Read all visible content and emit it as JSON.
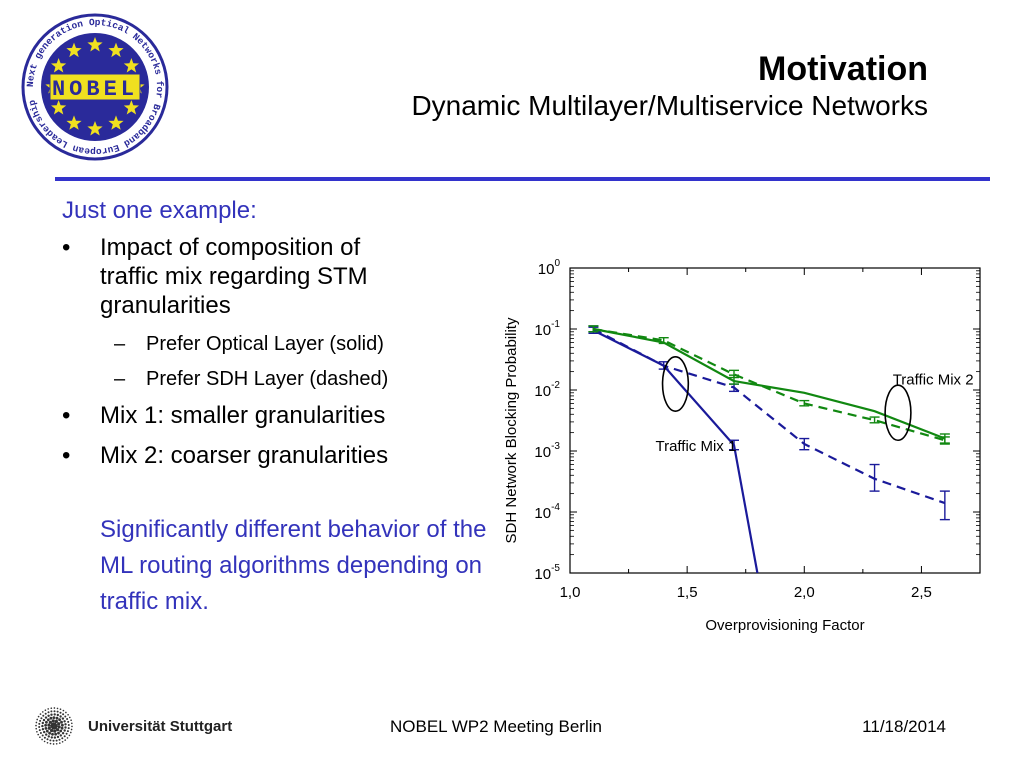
{
  "logo": {
    "text": "NOBEL",
    "ring_text": "Next generation Optical Networks for Broadband European Leadership",
    "colors": {
      "navy": "#2a2a9a",
      "gold": "#f0e020"
    }
  },
  "title": {
    "main": "Motivation",
    "sub": "Dynamic Multilayer/Multiservice Networks"
  },
  "content": {
    "lead": "Just one example:",
    "bullets": [
      {
        "text": "Impact of composition of traffic mix regarding STM granularities",
        "subs": [
          "Prefer Optical Layer (solid)",
          "Prefer SDH Layer (dashed)"
        ]
      },
      {
        "text": "Mix 1: smaller granularities"
      },
      {
        "text": "Mix 2: coarser granularities"
      }
    ],
    "bullet_mark": "•",
    "sub_mark": "–",
    "note": "Significantly different behavior of the ML routing algorithms depending on traffic mix."
  },
  "chart_data": {
    "type": "line",
    "xlabel": "Overprovisioning Factor",
    "ylabel": "SDH Network Blocking Probability",
    "xlim": [
      1.0,
      2.75
    ],
    "ylim": [
      1e-05,
      1
    ],
    "yscale": "log",
    "xticks": [
      "1,0",
      "1,5",
      "2,0",
      "2,5"
    ],
    "xtick_values": [
      1.0,
      1.5,
      2.0,
      2.5
    ],
    "ytick_values": [
      1e-05,
      0.0001,
      0.001,
      0.01,
      0.1,
      1
    ],
    "ytick_base": "10",
    "ytick_exponents": [
      "-5",
      "-4",
      "-3",
      "-2",
      "-1",
      "0"
    ],
    "grid": false,
    "series": [
      {
        "mix": "Traffic Mix 1",
        "style": "solid",
        "color": "#1a1a9a",
        "x": [
          1.1,
          1.4,
          1.7,
          1.8
        ],
        "y": [
          0.095,
          0.025,
          0.00125,
          1e-05
        ],
        "err": [
          [
            1.1,
            0.085,
            0.107
          ],
          [
            1.7,
            0.00105,
            0.0015
          ]
        ]
      },
      {
        "mix": "Traffic Mix 1",
        "style": "dashed",
        "color": "#1a1a9a",
        "x": [
          1.1,
          1.4,
          1.7,
          2.0,
          2.3,
          2.6
        ],
        "y": [
          0.1,
          0.025,
          0.011,
          0.0013,
          0.00035,
          0.00014
        ],
        "err": [
          [
            1.1,
            0.09,
            0.112
          ],
          [
            1.4,
            0.022,
            0.029
          ],
          [
            1.7,
            0.0095,
            0.0125
          ],
          [
            2.0,
            0.00105,
            0.0016
          ],
          [
            2.3,
            0.00022,
            0.0006
          ],
          [
            2.6,
            7.5e-05,
            0.00022
          ]
        ]
      },
      {
        "mix": "Traffic Mix 2",
        "style": "solid",
        "color": "#118811",
        "x": [
          1.1,
          1.4,
          1.7,
          2.0,
          2.3,
          2.6
        ],
        "y": [
          0.1,
          0.06,
          0.014,
          0.009,
          0.0045,
          0.0016
        ],
        "err": [
          [
            1.1,
            0.09,
            0.112
          ],
          [
            1.7,
            0.0125,
            0.0175
          ],
          [
            2.6,
            0.00135,
            0.0019
          ]
        ]
      },
      {
        "mix": "Traffic Mix 2",
        "style": "dashed",
        "color": "#118811",
        "x": [
          1.1,
          1.4,
          1.7,
          2.0,
          2.3,
          2.6
        ],
        "y": [
          0.1,
          0.065,
          0.018,
          0.006,
          0.0032,
          0.0015
        ],
        "err": [
          [
            1.1,
            0.09,
            0.112
          ],
          [
            1.4,
            0.058,
            0.072
          ],
          [
            1.7,
            0.016,
            0.021
          ],
          [
            2.0,
            0.0055,
            0.0067
          ],
          [
            2.3,
            0.0029,
            0.0036
          ],
          [
            2.6,
            0.0013,
            0.0017
          ]
        ]
      }
    ],
    "annotations": [
      {
        "text": "Traffic Mix 1",
        "x": 1.71,
        "y": 0.0012,
        "anchor": "end"
      },
      {
        "text": "Traffic Mix 2",
        "x": 2.55,
        "y": 0.015,
        "anchor": "middle"
      }
    ],
    "ellipses": [
      {
        "cx": 1.45,
        "cy": 0.015,
        "rx": 0.055,
        "ry_top": 0.035,
        "ry_bottom": 0.0045
      },
      {
        "cx": 2.4,
        "cy": 0.0043,
        "rx": 0.055,
        "ry_top": 0.012,
        "ry_bottom": 0.0015
      }
    ]
  },
  "footer": {
    "university": "Universität Stuttgart",
    "meeting": "NOBEL WP2 Meeting Berlin",
    "date": "11/18/2014"
  }
}
